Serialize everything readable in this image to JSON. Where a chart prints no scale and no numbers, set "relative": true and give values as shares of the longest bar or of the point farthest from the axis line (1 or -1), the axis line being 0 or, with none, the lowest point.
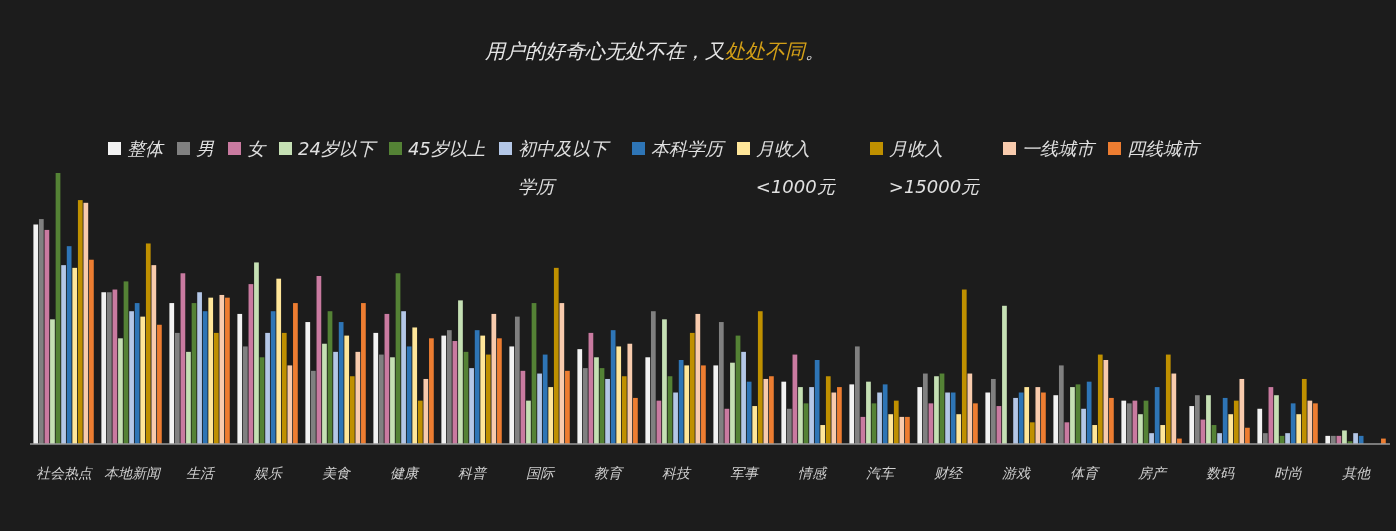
{
  "chart_data": {
    "type": "bar",
    "relative": true,
    "title": "用户的好奇心无处不在，又**处处不同**。",
    "legend": "top",
    "categories": [
      "社会热点",
      "本地新闻",
      "生活",
      "娱乐",
      "美食",
      "健康",
      "科普",
      "国际",
      "教育",
      "科技",
      "军事",
      "情感",
      "汽车",
      "财经",
      "游戏",
      "体育",
      "房产",
      "数码",
      "时尚",
      "其他"
    ],
    "series": [
      {
        "name": "整体",
        "color": "#f2f2f2",
        "values": [
          0.81,
          0.56,
          0.52,
          0.48,
          0.45,
          0.41,
          0.4,
          0.36,
          0.35,
          0.32,
          0.29,
          0.23,
          0.22,
          0.21,
          0.19,
          0.18,
          0.16,
          0.14,
          0.13,
          0.03
        ]
      },
      {
        "name": "男",
        "color": "#808080",
        "values": [
          0.83,
          0.56,
          0.41,
          0.36,
          0.27,
          0.33,
          0.42,
          0.47,
          0.28,
          0.49,
          0.45,
          0.13,
          0.36,
          0.26,
          0.24,
          0.29,
          0.15,
          0.18,
          0.04,
          0.03
        ]
      },
      {
        "name": "女",
        "color": "#c97aa0",
        "values": [
          0.79,
          0.57,
          0.63,
          0.59,
          0.62,
          0.48,
          0.38,
          0.27,
          0.41,
          0.16,
          0.13,
          0.33,
          0.1,
          0.15,
          0.14,
          0.08,
          0.16,
          0.09,
          0.21,
          0.03
        ]
      },
      {
        "name": "24岁以下",
        "color": "#c5e0b4",
        "values": [
          0.46,
          0.39,
          0.34,
          0.67,
          0.37,
          0.32,
          0.53,
          0.16,
          0.32,
          0.46,
          0.3,
          0.21,
          0.23,
          0.25,
          0.51,
          0.21,
          0.11,
          0.18,
          0.18,
          0.05
        ]
      },
      {
        "name": "45岁以上",
        "color": "#548235",
        "values": [
          1.0,
          0.6,
          0.52,
          0.32,
          0.49,
          0.63,
          0.34,
          0.52,
          0.28,
          0.25,
          0.4,
          0.15,
          0.15,
          0.26,
          0,
          0.22,
          0.16,
          0.07,
          0.03,
          0.01
        ]
      },
      {
        "name": "初中及以下学历",
        "color": "#b4c7e7",
        "values": [
          0.66,
          0.49,
          0.56,
          0.41,
          0.34,
          0.49,
          0.28,
          0.26,
          0.24,
          0.19,
          0.34,
          0.21,
          0.19,
          0.19,
          0.17,
          0.13,
          0.04,
          0.04,
          0.04,
          0.04
        ]
      },
      {
        "name": "本科学历",
        "color": "#2e75b6",
        "values": [
          0.73,
          0.52,
          0.49,
          0.49,
          0.45,
          0.36,
          0.42,
          0.33,
          0.42,
          0.31,
          0.23,
          0.31,
          0.22,
          0.19,
          0.19,
          0.23,
          0.21,
          0.17,
          0.15,
          0.03
        ]
      },
      {
        "name": "月收入<1000元",
        "color": "#ffe699",
        "values": [
          0.65,
          0.47,
          0.54,
          0.61,
          0.4,
          0.43,
          0.4,
          0.21,
          0.36,
          0.29,
          0.14,
          0.07,
          0.11,
          0.11,
          0.21,
          0.07,
          0.07,
          0.11,
          0.11,
          0
        ]
      },
      {
        "name": "月收入>15000元",
        "color": "#bf9000",
        "values": [
          0.9,
          0.74,
          0.41,
          0.41,
          0.25,
          0.16,
          0.33,
          0.65,
          0.25,
          0.41,
          0.49,
          0.25,
          0.16,
          0.57,
          0.08,
          0.33,
          0.33,
          0.16,
          0.24,
          0
        ]
      },
      {
        "name": "一线城市",
        "color": "#f8cbad",
        "values": [
          0.89,
          0.66,
          0.55,
          0.29,
          0.34,
          0.24,
          0.48,
          0.52,
          0.37,
          0.48,
          0.24,
          0.19,
          0.1,
          0.26,
          0.21,
          0.31,
          0.26,
          0.24,
          0.16,
          0
        ]
      },
      {
        "name": "四线城市",
        "color": "#ed7d31",
        "values": [
          0.68,
          0.44,
          0.54,
          0.52,
          0.52,
          0.39,
          0.39,
          0.27,
          0.17,
          0.29,
          0.25,
          0.21,
          0.1,
          0.15,
          0.19,
          0.17,
          0.02,
          0.06,
          0.15,
          0.02
        ]
      }
    ]
  }
}
